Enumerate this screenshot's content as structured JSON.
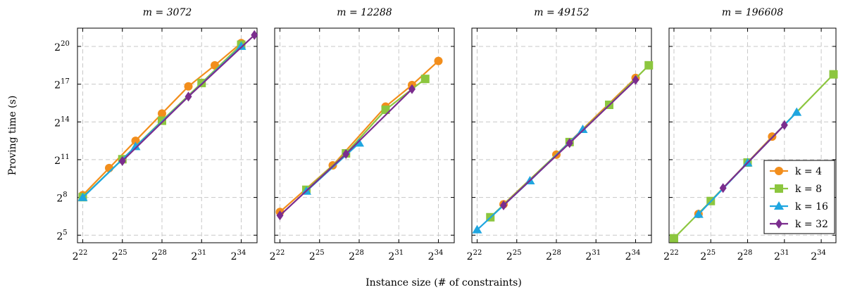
{
  "chart_data": [
    {
      "type": "line",
      "title": "m = 3072",
      "x_scale": "log2",
      "y_scale": "log2",
      "series": [
        {
          "name": "k = 4",
          "x": [
            4194304,
            16777216,
            67108864,
            268435456,
            1073741824,
            4294967296,
            17179869184
          ],
          "y": [
            290,
            1290,
            5800,
            26000,
            116000,
            370000,
            1260000
          ]
        },
        {
          "name": "k = 8",
          "x": [
            4194304,
            33554432,
            268435456,
            2147483648,
            17179869184
          ],
          "y": [
            260,
            2100,
            17500,
            140000,
            1150000
          ]
        },
        {
          "name": "k = 16",
          "x": [
            4194304,
            67108864,
            17179869184
          ],
          "y": [
            255,
            4200,
            1050000
          ]
        },
        {
          "name": "k = 32",
          "x": [
            33554432,
            1073741824,
            34359738368
          ],
          "y": [
            1900,
            66000,
            1960000
          ]
        }
      ]
    },
    {
      "type": "line",
      "title": "m = 12288",
      "x_scale": "log2",
      "y_scale": "log2",
      "series": [
        {
          "name": "k = 4",
          "x": [
            4194304,
            67108864,
            1073741824,
            4294967296,
            17179869184
          ],
          "y": [
            115,
            1500,
            38000,
            125000,
            470000
          ]
        },
        {
          "name": "k = 8",
          "x": [
            16777216,
            134217728,
            1073741824,
            8589934592
          ],
          "y": [
            390,
            2900,
            32000,
            175000
          ]
        },
        {
          "name": "k = 16",
          "x": [
            16777216,
            268435456
          ],
          "y": [
            360,
            5100
          ]
        },
        {
          "name": "k = 32",
          "x": [
            4194304,
            134217728,
            4294967296
          ],
          "y": [
            95,
            2800,
            100000
          ]
        }
      ]
    },
    {
      "type": "line",
      "title": "m = 49152",
      "x_scale": "log2",
      "y_scale": "log2",
      "series": [
        {
          "name": "k = 4",
          "x": [
            16777216,
            268435456,
            17179869184
          ],
          "y": [
            175,
            2700,
            185000
          ]
        },
        {
          "name": "k = 8",
          "x": [
            8388608,
            536870912,
            4294967296,
            34359738368
          ],
          "y": [
            86,
            5400,
            42000,
            370000
          ]
        },
        {
          "name": "k = 16",
          "x": [
            4194304,
            67108864,
            1073741824
          ],
          "y": [
            43,
            640,
            10800
          ]
        },
        {
          "name": "k = 32",
          "x": [
            16777216,
            536870912,
            17179869184
          ],
          "y": [
            165,
            5100,
            165000
          ]
        }
      ]
    },
    {
      "type": "line",
      "title": "m = 196608",
      "x_scale": "log2",
      "y_scale": "log2",
      "series": [
        {
          "name": "k = 4",
          "x": [
            16777216,
            1073741824
          ],
          "y": [
            103,
            7300
          ]
        },
        {
          "name": "k = 8",
          "x": [
            4194304,
            33554432,
            268435456,
            34359738368
          ],
          "y": [
            27,
            210,
            1750,
            225000
          ]
        },
        {
          "name": "k = 16",
          "x": [
            16777216,
            268435456,
            4294967296
          ],
          "y": [
            101,
            1720,
            27800
          ]
        },
        {
          "name": "k = 32",
          "x": [
            67108864,
            2147483648
          ],
          "y": [
            430,
            13800
          ]
        }
      ]
    }
  ],
  "x_ticks": {
    "base": "2",
    "exponents": [
      "22",
      "25",
      "28",
      "31",
      "34"
    ]
  },
  "y_ticks": {
    "base": "2",
    "exponents": [
      "5",
      "8",
      "11",
      "14",
      "17",
      "20"
    ]
  },
  "xlabel": "Instance size (# of constraints)",
  "ylabel": "Proving time (s)",
  "legend": {
    "placement": "bottom-right of last panel",
    "entries": [
      {
        "label": "k = 4",
        "color": "#f28e1c",
        "marker": "circle"
      },
      {
        "label": "k = 8",
        "color": "#8cc63f",
        "marker": "square"
      },
      {
        "label": "k = 16",
        "color": "#1fa6e0",
        "marker": "triangle"
      },
      {
        "label": "k = 32",
        "color": "#7b2d8e",
        "marker": "diamond"
      }
    ]
  },
  "grid": "dashed"
}
